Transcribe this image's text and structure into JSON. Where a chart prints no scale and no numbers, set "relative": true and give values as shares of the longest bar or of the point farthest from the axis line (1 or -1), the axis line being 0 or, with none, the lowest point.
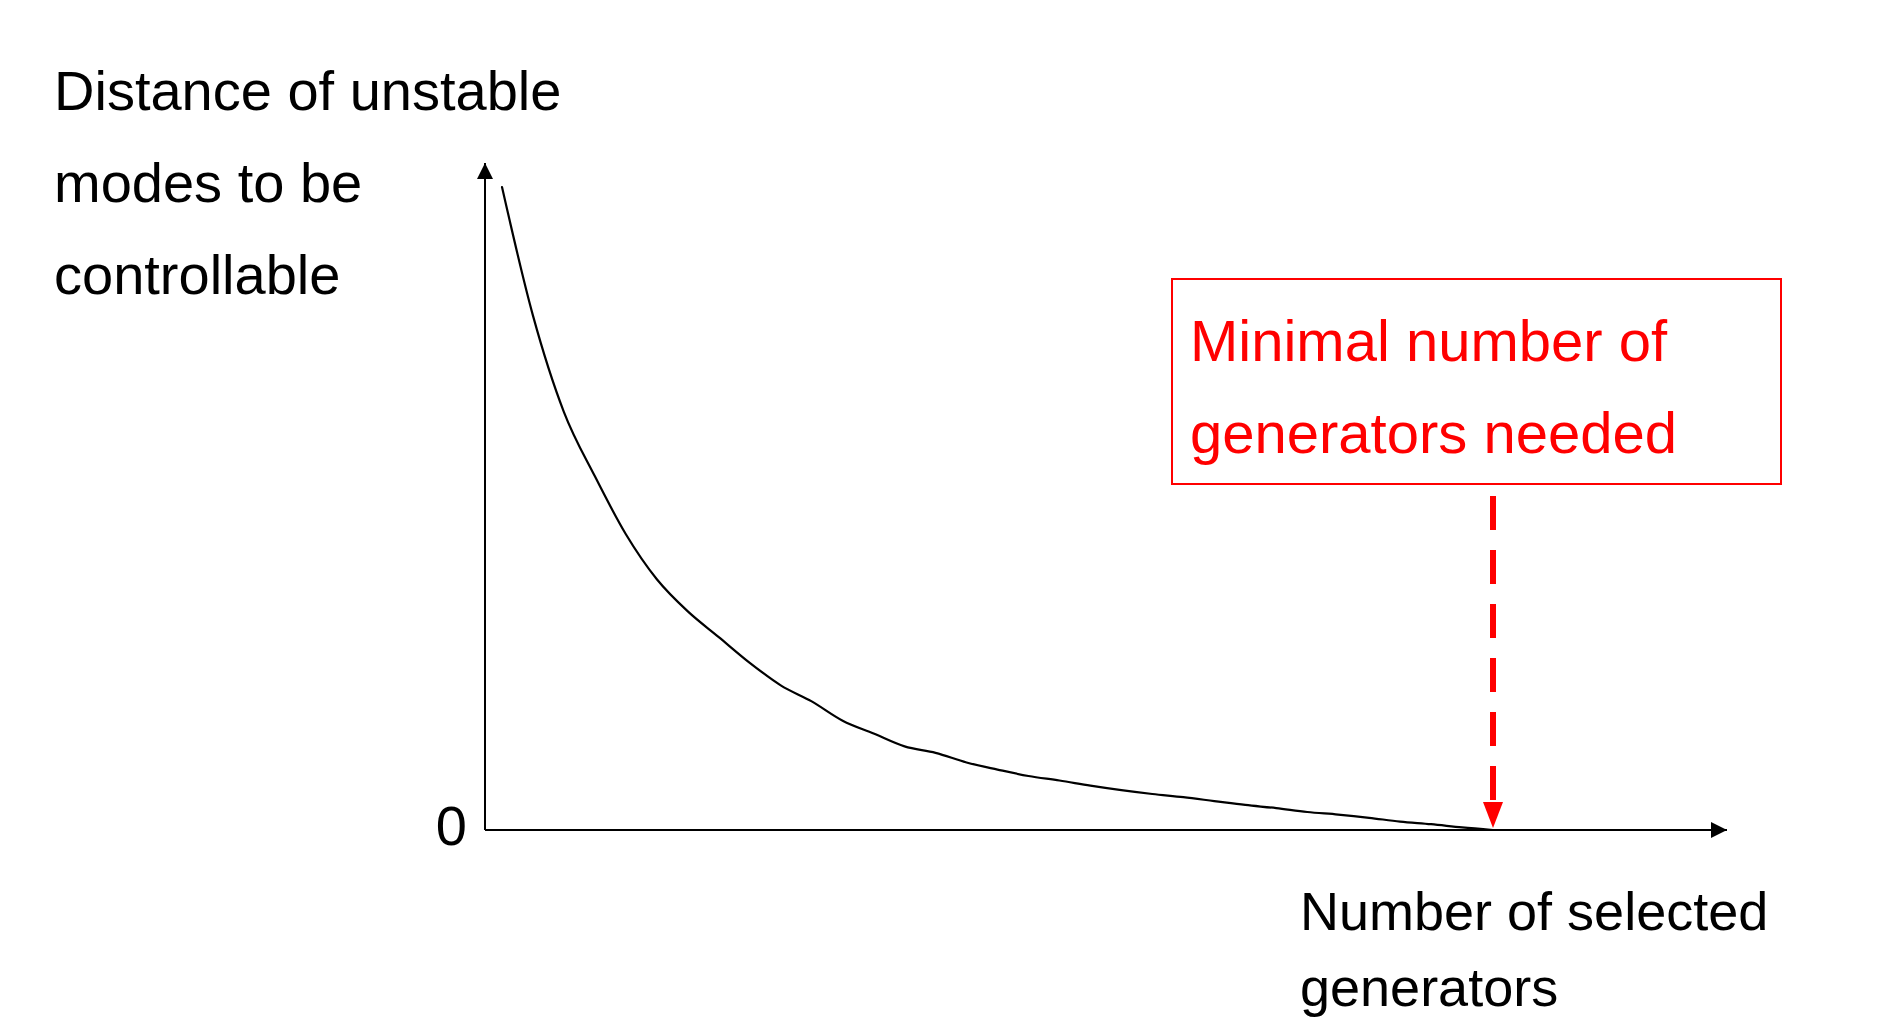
{
  "chart_data": {
    "type": "line",
    "relative": true,
    "ylabel": "Distance of unstable modes to be controllable",
    "xlabel": "Number of selected generators",
    "categories": [
      null,
      null,
      null,
      null,
      null,
      null,
      null,
      null,
      null,
      null,
      null,
      null,
      null,
      null,
      null,
      null,
      null,
      null,
      null,
      null,
      null,
      null,
      null,
      null,
      null,
      null,
      null,
      null,
      null,
      null,
      null,
      null,
      null,
      null,
      null,
      null,
      null,
      null,
      null,
      null
    ],
    "series": [
      {
        "color": "#000000",
        "values": [
          1.0,
          0.8,
          0.65,
          0.55,
          0.46,
          0.39,
          0.34,
          0.3,
          0.26,
          0.225,
          0.2,
          0.17,
          0.15,
          0.13,
          0.12,
          0.105,
          0.094,
          0.084,
          0.077,
          0.069,
          0.062,
          0.056,
          0.051,
          0.045,
          0.039,
          0.034,
          0.028,
          0.024,
          0.019,
          0.013,
          0.009,
          0.004,
          0,
          null,
          null,
          null,
          null,
          null,
          null,
          null
        ]
      }
    ],
    "annotations": [
      "0",
      "Minimal number of generators needed"
    ]
  }
}
